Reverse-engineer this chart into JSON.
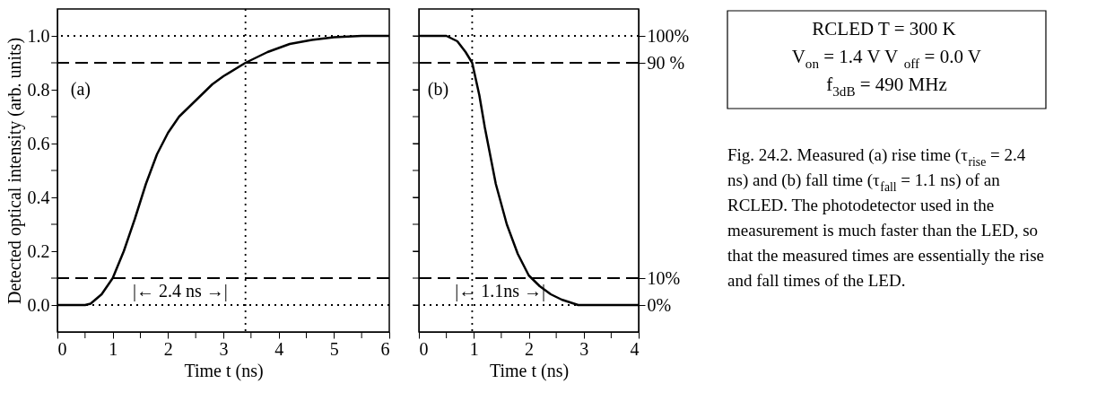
{
  "chart_data": [
    {
      "type": "line",
      "xlabel": "Time t (ns)",
      "ylabel": "Detected optical intensity (arb. units)",
      "x": [
        0,
        0.5,
        0.6,
        0.8,
        1.0,
        1.2,
        1.4,
        1.6,
        1.8,
        2.0,
        2.2,
        2.5,
        2.8,
        3.0,
        3.4,
        3.8,
        4.2,
        4.6,
        5.0,
        5.5,
        6.0
      ],
      "series": [
        {
          "color": "#000000",
          "values": [
            0,
            0,
            0.005,
            0.04,
            0.1,
            0.2,
            0.32,
            0.45,
            0.56,
            0.64,
            0.7,
            0.76,
            0.82,
            0.85,
            0.9,
            0.94,
            0.97,
            0.985,
            0.995,
            1.0,
            1.0
          ]
        }
      ],
      "xlim": [
        0,
        6
      ],
      "ylim": [
        -0.1,
        1.1
      ],
      "xticks": [
        0,
        {
          "value": 0.5,
          "label": null
        },
        1,
        {
          "value": 1.5,
          "label": null
        },
        2,
        {
          "value": 2.5,
          "label": null
        },
        3,
        {
          "value": 3.5,
          "label": null
        },
        4,
        {
          "value": 4.5,
          "label": null
        },
        5,
        {
          "value": 5.5,
          "label": null
        },
        6
      ],
      "yticks": [
        {
          "value": 0,
          "label": "0.0"
        },
        {
          "value": 0.1,
          "label": null
        },
        {
          "value": 0.2,
          "label": "0.2"
        },
        {
          "value": 0.3,
          "label": null
        },
        {
          "value": 0.4,
          "label": "0.4"
        },
        {
          "value": 0.5,
          "label": null
        },
        {
          "value": 0.6,
          "label": "0.6"
        },
        {
          "value": 0.7,
          "label": null
        },
        {
          "value": 0.8,
          "label": "0.8"
        },
        {
          "value": 0.9,
          "label": null
        },
        {
          "value": 1.0,
          "label": "1.0"
        }
      ],
      "ref_lines": [
        {
          "axis": "y",
          "value": 1.0,
          "line_style": "dotted"
        },
        {
          "axis": "y",
          "value": 0.9,
          "line_style": "dashed"
        },
        {
          "axis": "y",
          "value": 0.1,
          "line_style": "dashed"
        },
        {
          "axis": "y",
          "value": 0,
          "line_style": "dotted"
        },
        {
          "axis": "x",
          "value": 3.4,
          "line_style": "dotted"
        }
      ],
      "annotations": [
        "(a)",
        "|← 2.4 ns →|"
      ],
      "grid": false,
      "line_style": "solid"
    },
    {
      "type": "line",
      "xlabel": "Time t (ns)",
      "x": [
        0,
        0.5,
        0.7,
        0.85,
        0.97,
        1.1,
        1.2,
        1.4,
        1.6,
        1.8,
        2.0,
        2.05,
        2.2,
        2.4,
        2.6,
        2.9,
        4.0
      ],
      "series": [
        {
          "color": "#000000",
          "values": [
            1,
            1,
            0.98,
            0.94,
            0.9,
            0.78,
            0.66,
            0.45,
            0.3,
            0.19,
            0.11,
            0.1,
            0.07,
            0.04,
            0.02,
            0,
            0
          ]
        }
      ],
      "xlim": [
        0,
        4
      ],
      "ylim": [
        -0.1,
        1.1
      ],
      "y2lim": [
        -0.1,
        1.1
      ],
      "xticks": [
        0,
        {
          "value": 0.5,
          "label": null
        },
        1,
        {
          "value": 1.5,
          "label": null
        },
        2,
        {
          "value": 2.5,
          "label": null
        },
        3,
        {
          "value": 3.5,
          "label": null
        },
        4
      ],
      "yticks": [
        {
          "value": 0,
          "label": null
        },
        {
          "value": 0.1,
          "label": null
        },
        {
          "value": 0.2,
          "label": null
        },
        {
          "value": 0.3,
          "label": null
        },
        {
          "value": 0.4,
          "label": null
        },
        {
          "value": 0.5,
          "label": null
        },
        {
          "value": 0.6,
          "label": null
        },
        {
          "value": 0.7,
          "label": null
        },
        {
          "value": 0.8,
          "label": null
        },
        {
          "value": 0.9,
          "label": null
        },
        {
          "value": 1.0,
          "label": null
        }
      ],
      "y2ticks": [
        {
          "value": 0,
          "label": "0%"
        },
        {
          "value": 0.1,
          "label": "10%"
        },
        {
          "value": 0.9,
          "label": "90 %"
        },
        {
          "value": 1.0,
          "label": "100%"
        }
      ],
      "tick_labels": "x",
      "ref_lines": [
        {
          "axis": "y2",
          "value": 1.0,
          "line_style": "dotted"
        },
        {
          "axis": "y2",
          "value": 0.9,
          "line_style": "dashed"
        },
        {
          "axis": "y2",
          "value": 0.1,
          "line_style": "dashed"
        },
        {
          "axis": "y2",
          "value": 0,
          "line_style": "dotted"
        },
        {
          "axis": "x",
          "value": 0.97,
          "line_style": "dotted"
        }
      ],
      "annotations": [
        "(b)",
        "|← 1.1ns →|"
      ],
      "grid": false,
      "line_style": "solid"
    },
    {
      "type": "other",
      "annotations": [
        "RCLED  T = 300 K",
        "V$_{on}$ = 1.4 V  V$_{off}$ = 0.0 V",
        "f$_{3dB}$ = 490 MHz",
        "Fig. 24.2. Measured (a) rise time (τ$_{rise}$ = 2.4 ns) and (b) fall time (τ$_{fall}$ = 1.1 ns) of an RCLED. The photodetector used in the measurement is much faster than the LED, so that the measured times are essentially the rise and fall times of the LED."
      ]
    }
  ]
}
